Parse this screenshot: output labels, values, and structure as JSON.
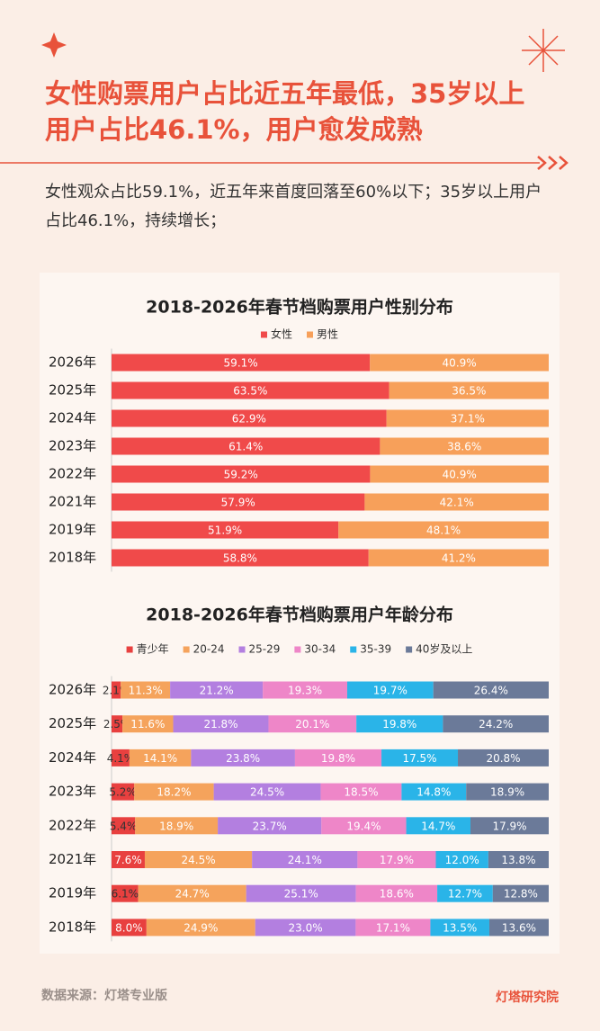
{
  "header": {
    "title": "女性购票用户占比近五年最低，35岁以上用户占比46.1%，用户愈发成熟",
    "description": "女性观众占比59.1%，近五年来首度回落至60%以下；35岁以上用户占比46.1%，持续增长；"
  },
  "chart_data": [
    {
      "type": "bar",
      "title": "2018-2026年春节档购票用户性别分布",
      "categories": [
        "2026年",
        "2025年",
        "2024年",
        "2023年",
        "2022年",
        "2021年",
        "2019年",
        "2018年"
      ],
      "series": [
        {
          "name": "女性",
          "color": "#f04a4a",
          "values": [
            59.1,
            63.5,
            62.9,
            61.4,
            59.2,
            57.9,
            51.9,
            58.8
          ],
          "value_labels": [
            "59.1%",
            "63.5%",
            "62.9%",
            "61.4%",
            "59.2%",
            "57.9%",
            "51.9%",
            "58.8%"
          ]
        },
        {
          "name": "男性",
          "color": "#f7a05a",
          "values": [
            40.9,
            36.5,
            37.1,
            38.6,
            40.9,
            42.1,
            48.1,
            41.2
          ],
          "value_labels": [
            "40.9%",
            "36.5%",
            "37.1%",
            "38.6%",
            "40.9%",
            "42.1%",
            "48.1%",
            "41.2%"
          ]
        }
      ]
    },
    {
      "type": "bar",
      "title": "2018-2026年春节档购票用户年龄分布",
      "categories": [
        "2026年",
        "2025年",
        "2024年",
        "2023年",
        "2022年",
        "2021年",
        "2019年",
        "2018年"
      ],
      "series": [
        {
          "name": "青少年",
          "color": "#e8403f",
          "values": [
            2.1,
            2.5,
            4.1,
            5.2,
            5.4,
            7.6,
            6.1,
            8.0
          ],
          "value_labels": [
            "2.1%",
            "2.5%",
            "4.1%",
            "5.2%",
            "5.4%",
            "7.6%",
            "6.1%",
            "8.0%"
          ]
        },
        {
          "name": "20-24",
          "color": "#f5a35c",
          "values": [
            11.3,
            11.6,
            14.1,
            18.2,
            18.9,
            24.5,
            24.7,
            24.9
          ],
          "value_labels": [
            "11.3%",
            "11.6%",
            "14.1%",
            "18.2%",
            "18.9%",
            "24.5%",
            "24.7%",
            "24.9%"
          ]
        },
        {
          "name": "25-29",
          "color": "#b37fe0",
          "values": [
            21.2,
            21.8,
            23.8,
            24.5,
            23.7,
            24.1,
            25.1,
            23.0
          ],
          "value_labels": [
            "21.2%",
            "21.8%",
            "23.8%",
            "24.5%",
            "23.7%",
            "24.1%",
            "25.1%",
            "23.0%"
          ]
        },
        {
          "name": "30-34",
          "color": "#ee86c8",
          "values": [
            19.3,
            20.1,
            19.8,
            18.5,
            19.4,
            17.9,
            18.6,
            17.1
          ],
          "value_labels": [
            "19.3%",
            "20.1%",
            "19.8%",
            "18.5%",
            "19.4%",
            "17.9%",
            "18.6%",
            "17.1%"
          ]
        },
        {
          "name": "35-39",
          "color": "#2ab4e8",
          "values": [
            19.7,
            19.8,
            17.5,
            14.8,
            14.7,
            12.0,
            12.7,
            13.5
          ],
          "value_labels": [
            "19.7%",
            "19.8%",
            "17.5%",
            "14.8%",
            "14.7%",
            "12.0%",
            "12.7%",
            "13.5%"
          ]
        },
        {
          "name": "40岁及以上",
          "color": "#6b7a99",
          "values": [
            26.4,
            24.2,
            20.8,
            18.9,
            17.9,
            13.8,
            12.8,
            13.6
          ],
          "value_labels": [
            "26.4%",
            "24.2%",
            "20.8%",
            "18.9%",
            "17.9%",
            "13.8%",
            "12.8%",
            "13.6%"
          ]
        }
      ]
    }
  ],
  "footer": {
    "source": "数据来源：灯塔专业版",
    "brand": "灯塔研究院"
  }
}
